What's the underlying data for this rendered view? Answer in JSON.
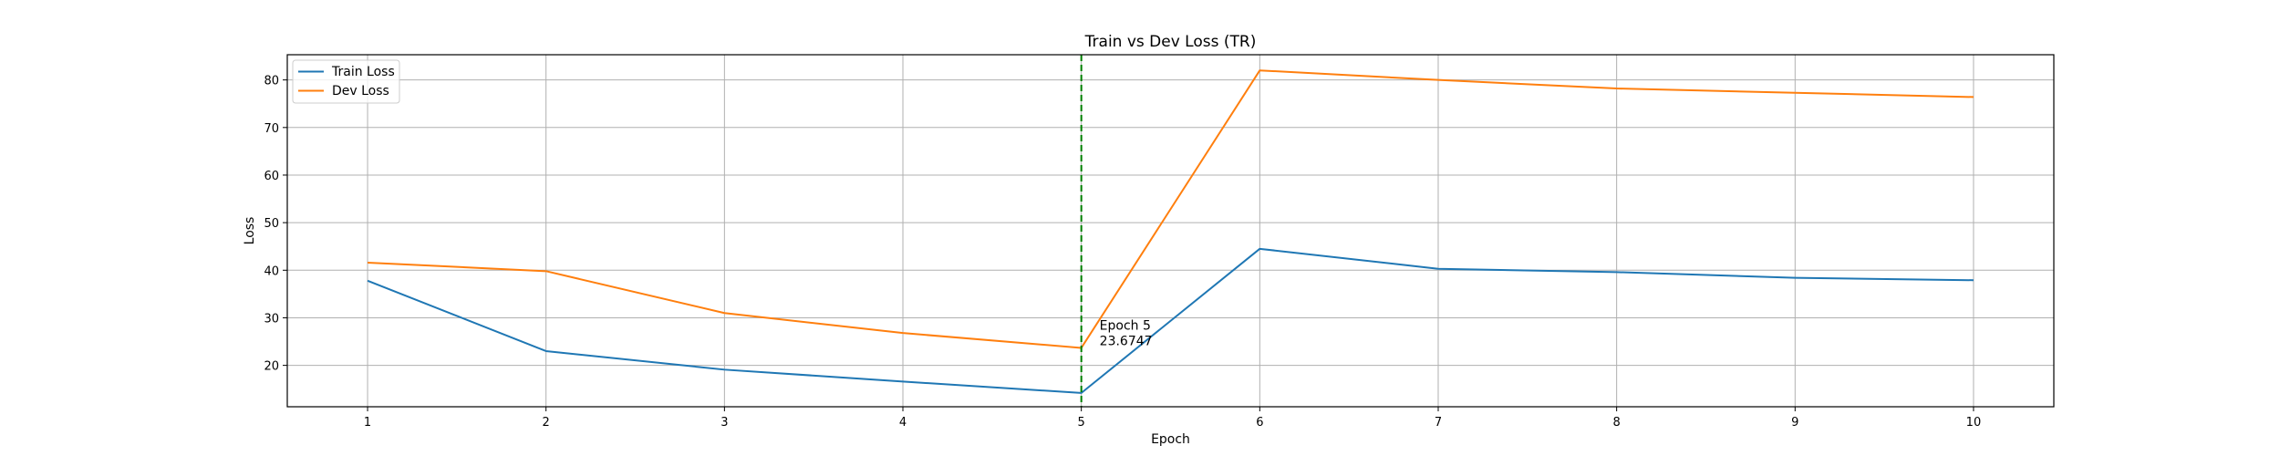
{
  "chart_data": {
    "type": "line",
    "title": "Train vs Dev Loss (TR)",
    "xlabel": "Epoch",
    "ylabel": "Loss",
    "x": [
      1,
      2,
      3,
      4,
      5,
      6,
      7,
      8,
      9,
      10
    ],
    "xlim": [
      0.55,
      10.45
    ],
    "ylim": [
      11.3,
      85.3
    ],
    "xticks": [
      1,
      2,
      3,
      4,
      5,
      6,
      7,
      8,
      9,
      10
    ],
    "yticks": [
      20,
      30,
      40,
      50,
      60,
      70,
      80
    ],
    "grid": true,
    "legend_position": "top-left",
    "series": [
      {
        "name": "Train Loss",
        "color": "#1f77b4",
        "values": [
          37.8,
          23.0,
          19.1,
          16.6,
          14.2,
          44.5,
          40.3,
          39.6,
          38.4,
          37.9
        ]
      },
      {
        "name": "Dev Loss",
        "color": "#ff7f0e",
        "values": [
          41.6,
          39.8,
          31.0,
          26.8,
          23.6747,
          82.0,
          80.0,
          78.2,
          77.3,
          76.4
        ]
      }
    ],
    "annotation": {
      "x": 5,
      "y": 23.6747,
      "line1": "Epoch 5",
      "line2": "23.6747",
      "line_color": "#008000",
      "line_style": "dashed"
    }
  }
}
